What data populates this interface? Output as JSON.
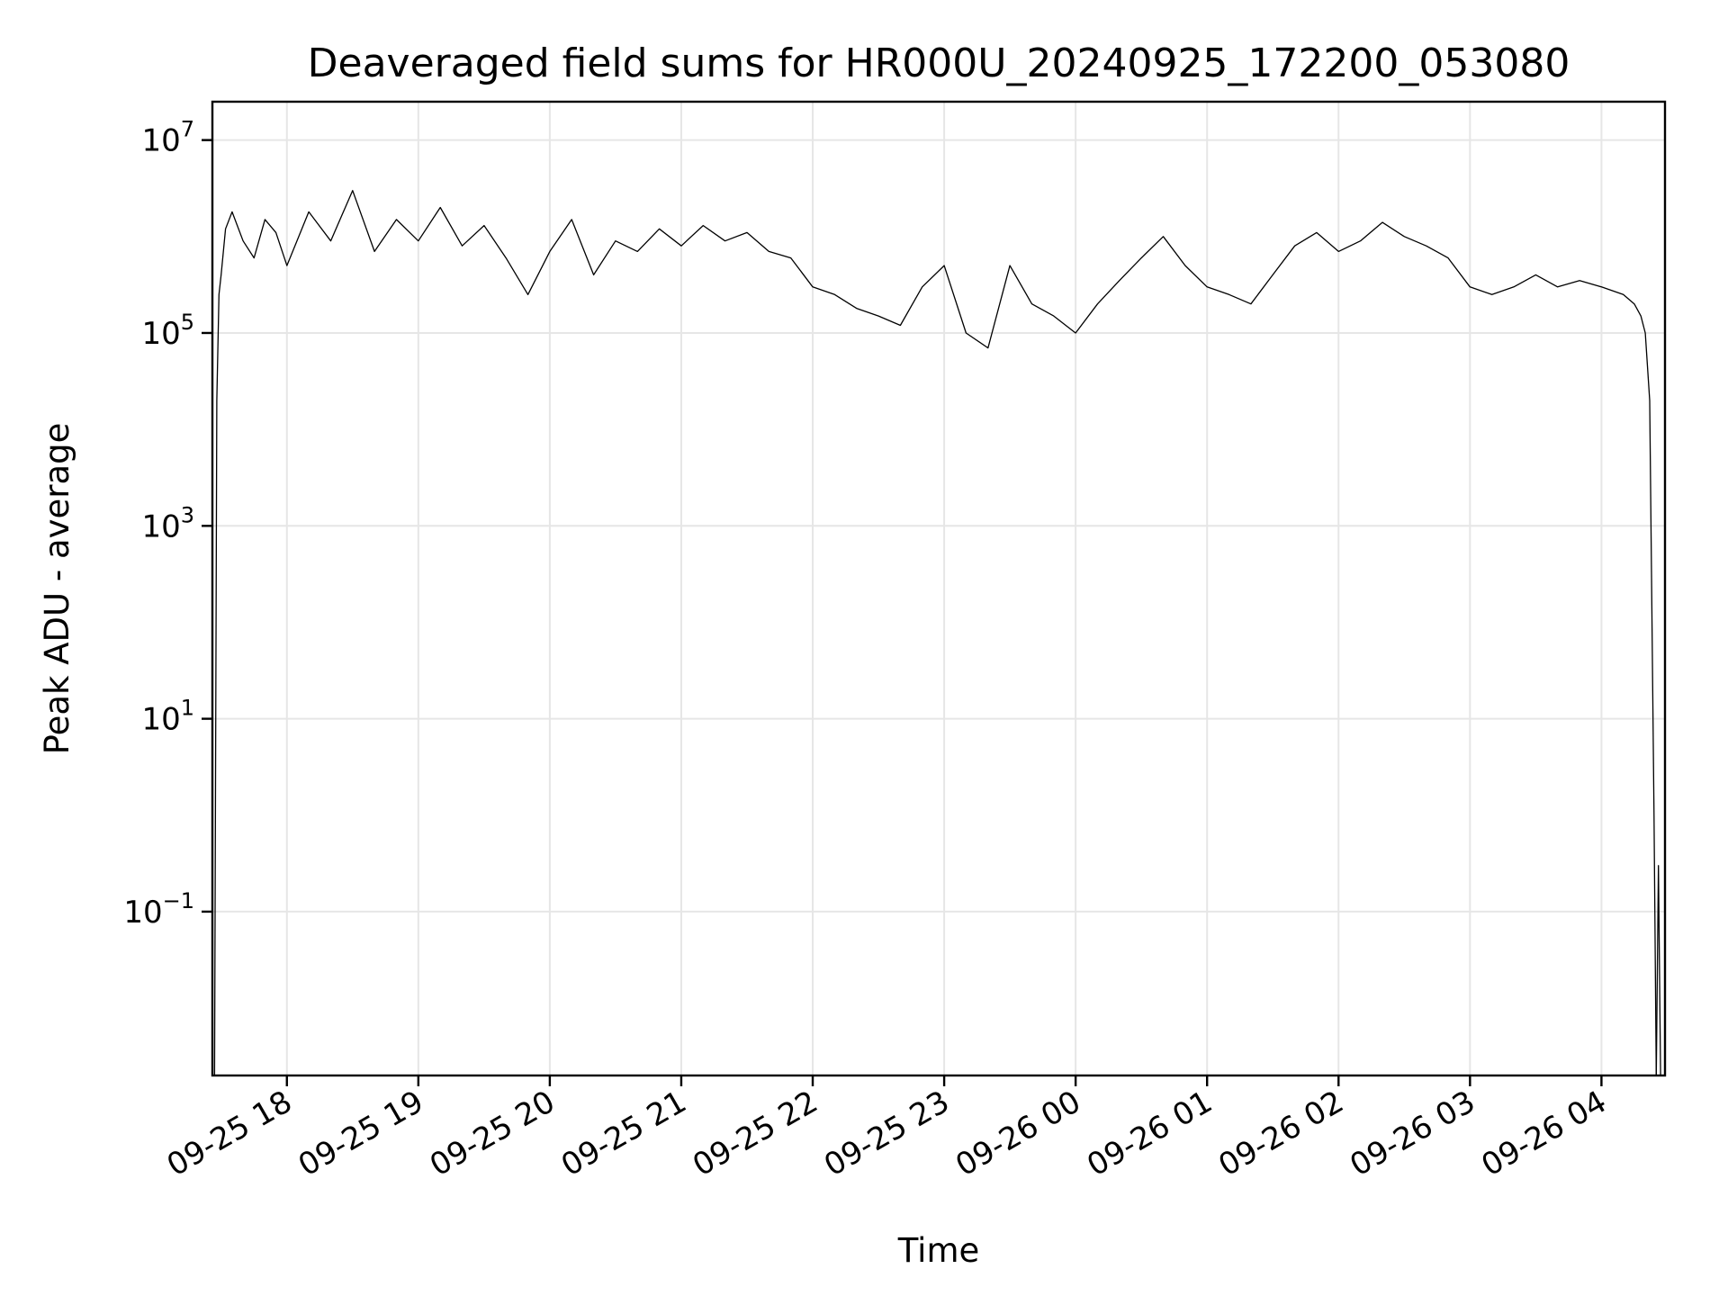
{
  "chart_data": {
    "type": "line",
    "title": "Deaveraged field sums for HR000U_20240925_172200_053080",
    "xlabel": "Time",
    "ylabel": "Peak ADU - average",
    "y_scale": "log",
    "grid": true,
    "line_color": "#000000",
    "xlim": [
      "2024-09-25 17:26",
      "2024-09-26 04:29"
    ],
    "ylim": [
      0.002,
      25000000
    ],
    "x_ticks": [
      "2024-09-25 18:00",
      "2024-09-25 19:00",
      "2024-09-25 20:00",
      "2024-09-25 21:00",
      "2024-09-25 22:00",
      "2024-09-25 23:00",
      "2024-09-26 00:00",
      "2024-09-26 01:00",
      "2024-09-26 02:00",
      "2024-09-26 03:00",
      "2024-09-26 04:00"
    ],
    "x_tick_labels": [
      "09-25 18",
      "09-25 19",
      "09-25 20",
      "09-25 21",
      "09-25 22",
      "09-25 23",
      "09-26 00",
      "09-26 01",
      "09-26 02",
      "09-26 03",
      "09-26 04"
    ],
    "y_ticks": [
      0.1,
      10,
      1000,
      100000,
      10000000
    ],
    "y_tick_labels": [
      {
        "base": "10",
        "exp": "−1"
      },
      {
        "base": "10",
        "exp": "1"
      },
      {
        "base": "10",
        "exp": "3"
      },
      {
        "base": "10",
        "exp": "5"
      },
      {
        "base": "10",
        "exp": "7"
      }
    ],
    "series": [
      {
        "x": [
          "2024-09-25 17:27",
          "2024-09-25 17:28",
          "2024-09-25 17:29",
          "2024-09-25 17:30",
          "2024-09-25 17:32",
          "2024-09-25 17:35",
          "2024-09-25 17:40",
          "2024-09-25 17:45",
          "2024-09-25 17:50",
          "2024-09-25 17:55",
          "2024-09-25 18:00",
          "2024-09-25 18:10",
          "2024-09-25 18:20",
          "2024-09-25 18:30",
          "2024-09-25 18:40",
          "2024-09-25 18:50",
          "2024-09-25 19:00",
          "2024-09-25 19:10",
          "2024-09-25 19:20",
          "2024-09-25 19:30",
          "2024-09-25 19:40",
          "2024-09-25 19:50",
          "2024-09-25 20:00",
          "2024-09-25 20:10",
          "2024-09-25 20:20",
          "2024-09-25 20:30",
          "2024-09-25 20:40",
          "2024-09-25 20:50",
          "2024-09-25 21:00",
          "2024-09-25 21:10",
          "2024-09-25 21:20",
          "2024-09-25 21:30",
          "2024-09-25 21:40",
          "2024-09-25 21:50",
          "2024-09-25 22:00",
          "2024-09-25 22:10",
          "2024-09-25 22:20",
          "2024-09-25 22:30",
          "2024-09-25 22:40",
          "2024-09-25 22:50",
          "2024-09-25 23:00",
          "2024-09-25 23:10",
          "2024-09-25 23:20",
          "2024-09-25 23:30",
          "2024-09-25 23:40",
          "2024-09-25 23:50",
          "2024-09-26 00:00",
          "2024-09-26 00:10",
          "2024-09-26 00:20",
          "2024-09-26 00:30",
          "2024-09-26 00:40",
          "2024-09-26 00:50",
          "2024-09-26 01:00",
          "2024-09-26 01:10",
          "2024-09-26 01:20",
          "2024-09-26 01:30",
          "2024-09-26 01:40",
          "2024-09-26 01:50",
          "2024-09-26 02:00",
          "2024-09-26 02:10",
          "2024-09-26 02:20",
          "2024-09-26 02:30",
          "2024-09-26 02:40",
          "2024-09-26 02:50",
          "2024-09-26 03:00",
          "2024-09-26 03:10",
          "2024-09-26 03:20",
          "2024-09-26 03:30",
          "2024-09-26 03:40",
          "2024-09-26 03:50",
          "2024-09-26 04:00",
          "2024-09-26 04:10",
          "2024-09-26 04:15",
          "2024-09-26 04:18",
          "2024-09-26 04:20",
          "2024-09-26 04:22",
          "2024-09-26 04:24",
          "2024-09-26 04:25"
        ],
        "y": [
          0.002,
          20000,
          250000,
          400000,
          1200000,
          1800000,
          900000,
          600000,
          1500000,
          1100000,
          500000,
          1800000,
          900000,
          3000000,
          700000,
          1500000,
          900000,
          2000000,
          800000,
          1300000,
          600000,
          250000,
          700000,
          1500000,
          400000,
          900000,
          700000,
          1200000,
          800000,
          1300000,
          900000,
          1100000,
          700000,
          600000,
          300000,
          250000,
          180000,
          150000,
          120000,
          300000,
          500000,
          100000,
          70000,
          500000,
          200000,
          150000,
          100000,
          200000,
          350000,
          600000,
          1000000,
          500000,
          300000,
          250000,
          200000,
          400000,
          800000,
          1100000,
          700000,
          900000,
          1400000,
          1000000,
          800000,
          600000,
          300000,
          250000,
          300000,
          400000,
          300000,
          350000,
          300000,
          250000,
          200000,
          150000,
          100000,
          20000,
          1,
          0.002
        ]
      },
      {
        "x": [
          "2024-09-26 04:25",
          "2024-09-26 04:26",
          "2024-09-26 04:27"
        ],
        "y": [
          0.002,
          0.3,
          0.002
        ]
      }
    ]
  }
}
